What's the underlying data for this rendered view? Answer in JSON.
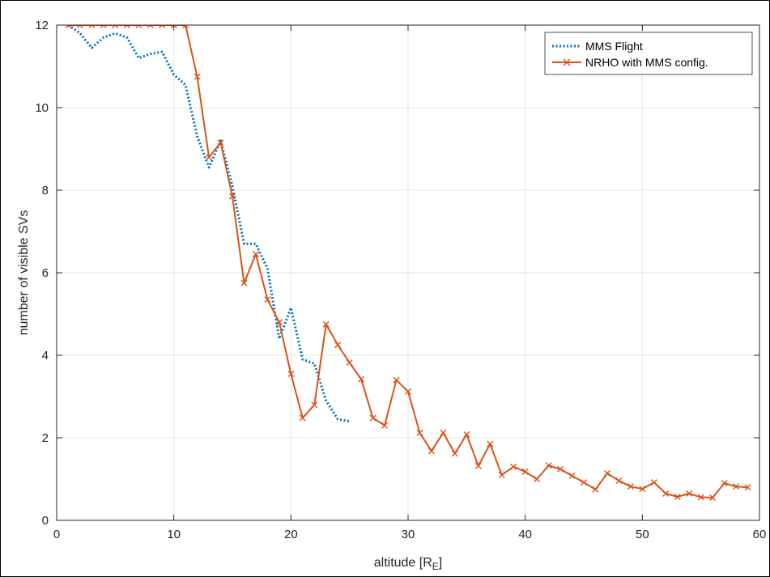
{
  "chart_data": {
    "type": "line",
    "xlabel": "altitude [R",
    "xlabel_sub": "E",
    "xlabel_end": "]",
    "ylabel": "number of visible SVs",
    "xlim": [
      0,
      60
    ],
    "ylim": [
      0,
      12
    ],
    "xticks": [
      0,
      10,
      20,
      30,
      40,
      50,
      60
    ],
    "yticks": [
      0,
      2,
      4,
      6,
      8,
      10,
      12
    ],
    "grid": true,
    "legend_position": "top-right",
    "series": [
      {
        "name": "MMS Flight",
        "color": "#0072BD",
        "style": "dotted",
        "marker": "none",
        "x": [
          1,
          2,
          3,
          4,
          5,
          6,
          7,
          8,
          9,
          10,
          11,
          12,
          13,
          14,
          15,
          16,
          17,
          18,
          19,
          20,
          21,
          22,
          23,
          24,
          25
        ],
        "y": [
          12,
          11.8,
          11.45,
          11.7,
          11.8,
          11.7,
          11.2,
          11.3,
          11.35,
          10.8,
          10.55,
          9.3,
          8.55,
          9.2,
          8.1,
          6.7,
          6.7,
          6.1,
          4.4,
          5.15,
          3.9,
          3.8,
          2.9,
          2.45,
          2.4
        ]
      },
      {
        "name": "NRHO with MMS config.",
        "color": "#D95319",
        "style": "solid",
        "marker": "x",
        "x": [
          1,
          2,
          3,
          4,
          5,
          6,
          7,
          8,
          9,
          10,
          11,
          12,
          13,
          14,
          15,
          16,
          17,
          18,
          19,
          20,
          21,
          22,
          23,
          24,
          25,
          26,
          27,
          28,
          29,
          30,
          31,
          32,
          33,
          34,
          35,
          36,
          37,
          38,
          39,
          40,
          41,
          42,
          43,
          44,
          45,
          46,
          47,
          48,
          49,
          50,
          51,
          52,
          53,
          54,
          55,
          56,
          57,
          58,
          59
        ],
        "y": [
          12,
          12,
          12,
          12,
          12,
          12,
          12,
          12,
          12,
          12,
          12,
          10.75,
          8.8,
          9.15,
          7.85,
          5.75,
          6.45,
          5.35,
          4.8,
          3.55,
          2.48,
          2.8,
          4.75,
          4.25,
          3.82,
          3.42,
          2.48,
          2.3,
          3.4,
          3.12,
          2.12,
          1.68,
          2.12,
          1.62,
          2.08,
          1.32,
          1.85,
          1.1,
          1.3,
          1.18,
          1.0,
          1.33,
          1.24,
          1.08,
          0.92,
          0.75,
          1.14,
          0.96,
          0.82,
          0.76,
          0.92,
          0.65,
          0.57,
          0.65,
          0.56,
          0.55,
          0.9,
          0.82,
          0.8
        ]
      }
    ]
  }
}
